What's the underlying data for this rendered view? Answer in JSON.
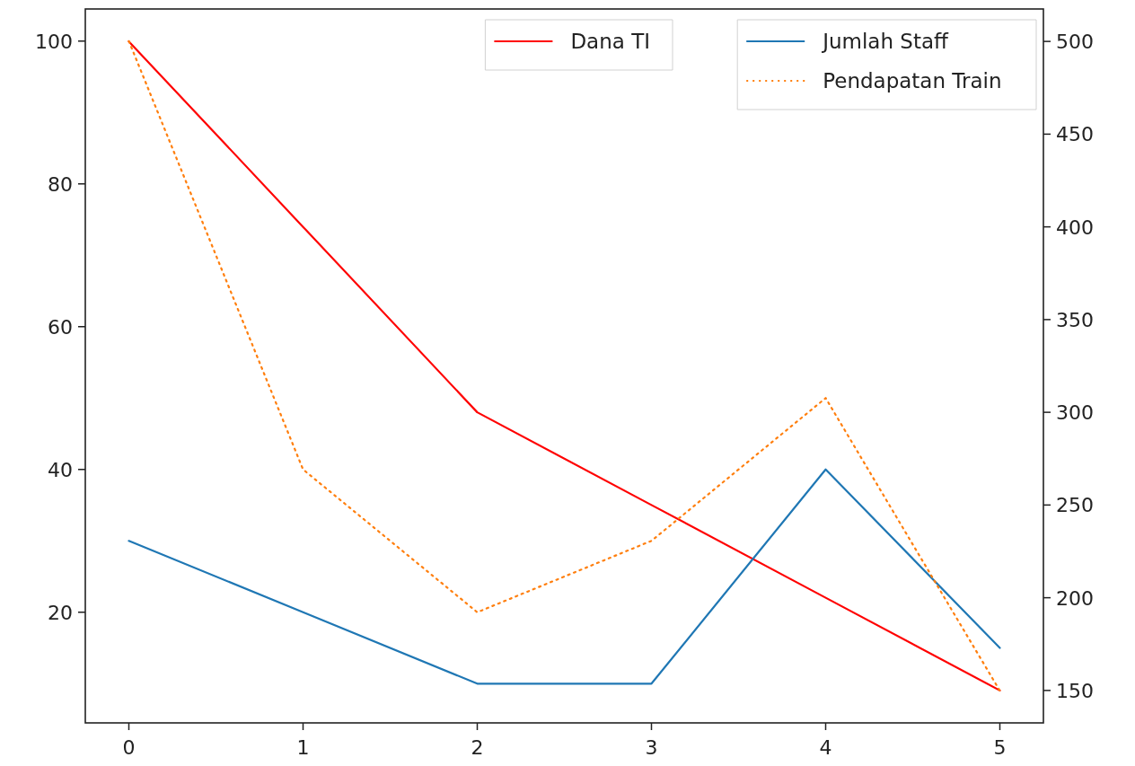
{
  "chart_data": {
    "type": "line",
    "x": [
      0,
      1,
      2,
      3,
      4,
      5
    ],
    "xlim": [
      -0.25,
      5.25
    ],
    "xticks": [
      0,
      1,
      2,
      3,
      4,
      5
    ],
    "ylim": [
      4.5,
      104.5
    ],
    "yticks": [
      20,
      40,
      60,
      80,
      100
    ],
    "y2lim": [
      132.5,
      517.5
    ],
    "y2ticks": [
      150,
      200,
      250,
      300,
      350,
      400,
      450,
      500
    ],
    "series": [
      {
        "name": "Dana TI",
        "color": "#ff0000",
        "axis": "y2",
        "line_style": "solid",
        "values": [
          500,
          400,
          300,
          250,
          200,
          150
        ]
      },
      {
        "name": "Jumlah Staff",
        "color": "#1f77b4",
        "line_style": "solid",
        "values": [
          30,
          20,
          10,
          10,
          40,
          15
        ]
      },
      {
        "name": "Pendapatan Train",
        "color": "#ff7f0e",
        "line_style": "dotted",
        "values": [
          100,
          40,
          20,
          30,
          50,
          9
        ]
      }
    ],
    "legend": "top right",
    "grid": false
  }
}
